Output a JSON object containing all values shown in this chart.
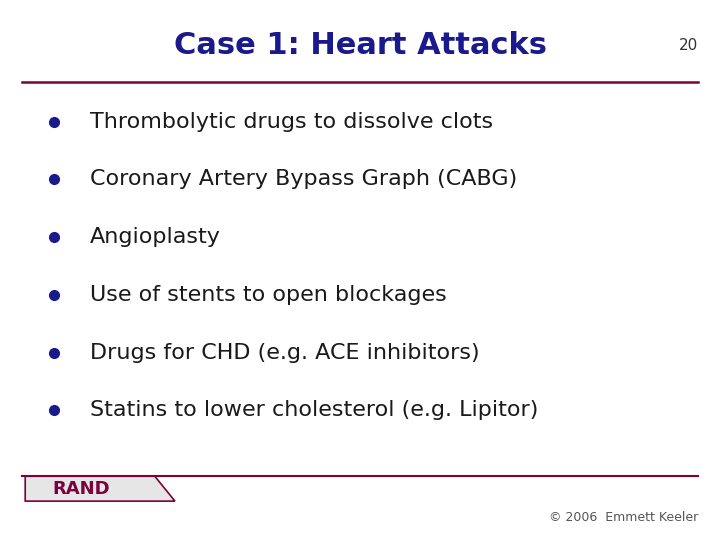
{
  "title": "Case 1: Heart Attacks",
  "title_color": "#1a1a8c",
  "title_fontsize": 22,
  "bullet_points": [
    "Thrombolytic drugs to dissolve clots",
    "Coronary Artery Bypass Graph (CABG)",
    "Angioplasty",
    "Use of stents to open blockages",
    "Drugs for CHD (e.g. ACE inhibitors)",
    "Statins to lower cholesterol (e.g. Lipitor)"
  ],
  "bullet_color": "#1a1a8c",
  "bullet_fontsize": 16,
  "text_color": "#1a1a1a",
  "background_color": "#ffffff",
  "line_color": "#7b003c",
  "rand_label": "RAND",
  "rand_color": "#7b003c",
  "footer_text": "© 2006  Emmett Keeler",
  "footer_fontsize": 9,
  "page_number": "20",
  "page_number_fontsize": 11
}
